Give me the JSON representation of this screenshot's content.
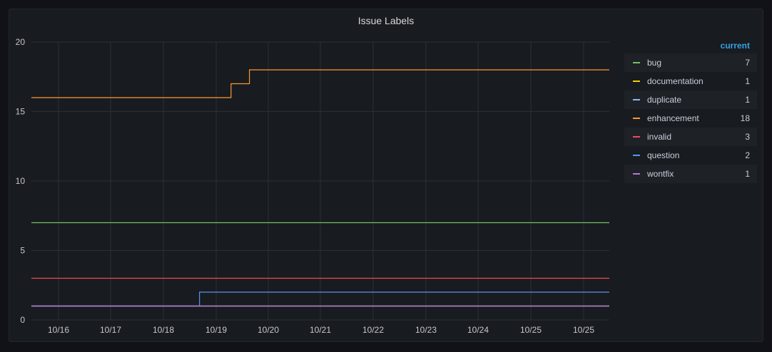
{
  "panel": {
    "title": "Issue Labels"
  },
  "legend": {
    "header": "current"
  },
  "chart_data": {
    "type": "line",
    "title": "Issue Labels",
    "ylim": [
      0,
      20
    ],
    "yticks": [
      0,
      5,
      10,
      15,
      20
    ],
    "xlim": [
      0,
      11
    ],
    "xtick_labels": [
      "10/16",
      "10/17",
      "10/18",
      "10/19",
      "10/20",
      "10/21",
      "10/22",
      "10/23",
      "10/24",
      "10/25",
      "10/25"
    ],
    "grid": true,
    "legend_placement": "right",
    "series": [
      {
        "name": "bug",
        "color": "#73bf69",
        "current": 7,
        "points": [
          [
            0,
            7
          ],
          [
            11,
            7
          ]
        ]
      },
      {
        "name": "documentation",
        "color": "#f2cc0c",
        "current": 1,
        "points": [
          [
            0,
            1
          ],
          [
            11,
            1
          ]
        ]
      },
      {
        "name": "duplicate",
        "color": "#8ab8ff",
        "current": 1,
        "points": [
          [
            0,
            1
          ],
          [
            11,
            1
          ]
        ]
      },
      {
        "name": "enhancement",
        "color": "#ff9830",
        "current": 18,
        "points": [
          [
            0,
            16
          ],
          [
            3.8,
            16
          ],
          [
            3.8,
            17
          ],
          [
            4.15,
            17
          ],
          [
            4.15,
            18
          ],
          [
            11,
            18
          ]
        ]
      },
      {
        "name": "invalid",
        "color": "#f2495c",
        "current": 3,
        "points": [
          [
            0,
            3
          ],
          [
            11,
            3
          ]
        ]
      },
      {
        "name": "question",
        "color": "#5794f2",
        "current": 2,
        "points": [
          [
            0,
            1
          ],
          [
            3.2,
            1
          ],
          [
            3.2,
            2
          ],
          [
            11,
            2
          ]
        ]
      },
      {
        "name": "wontfix",
        "color": "#b877d9",
        "current": 1,
        "points": [
          [
            0,
            1
          ],
          [
            11,
            1
          ]
        ]
      }
    ]
  }
}
